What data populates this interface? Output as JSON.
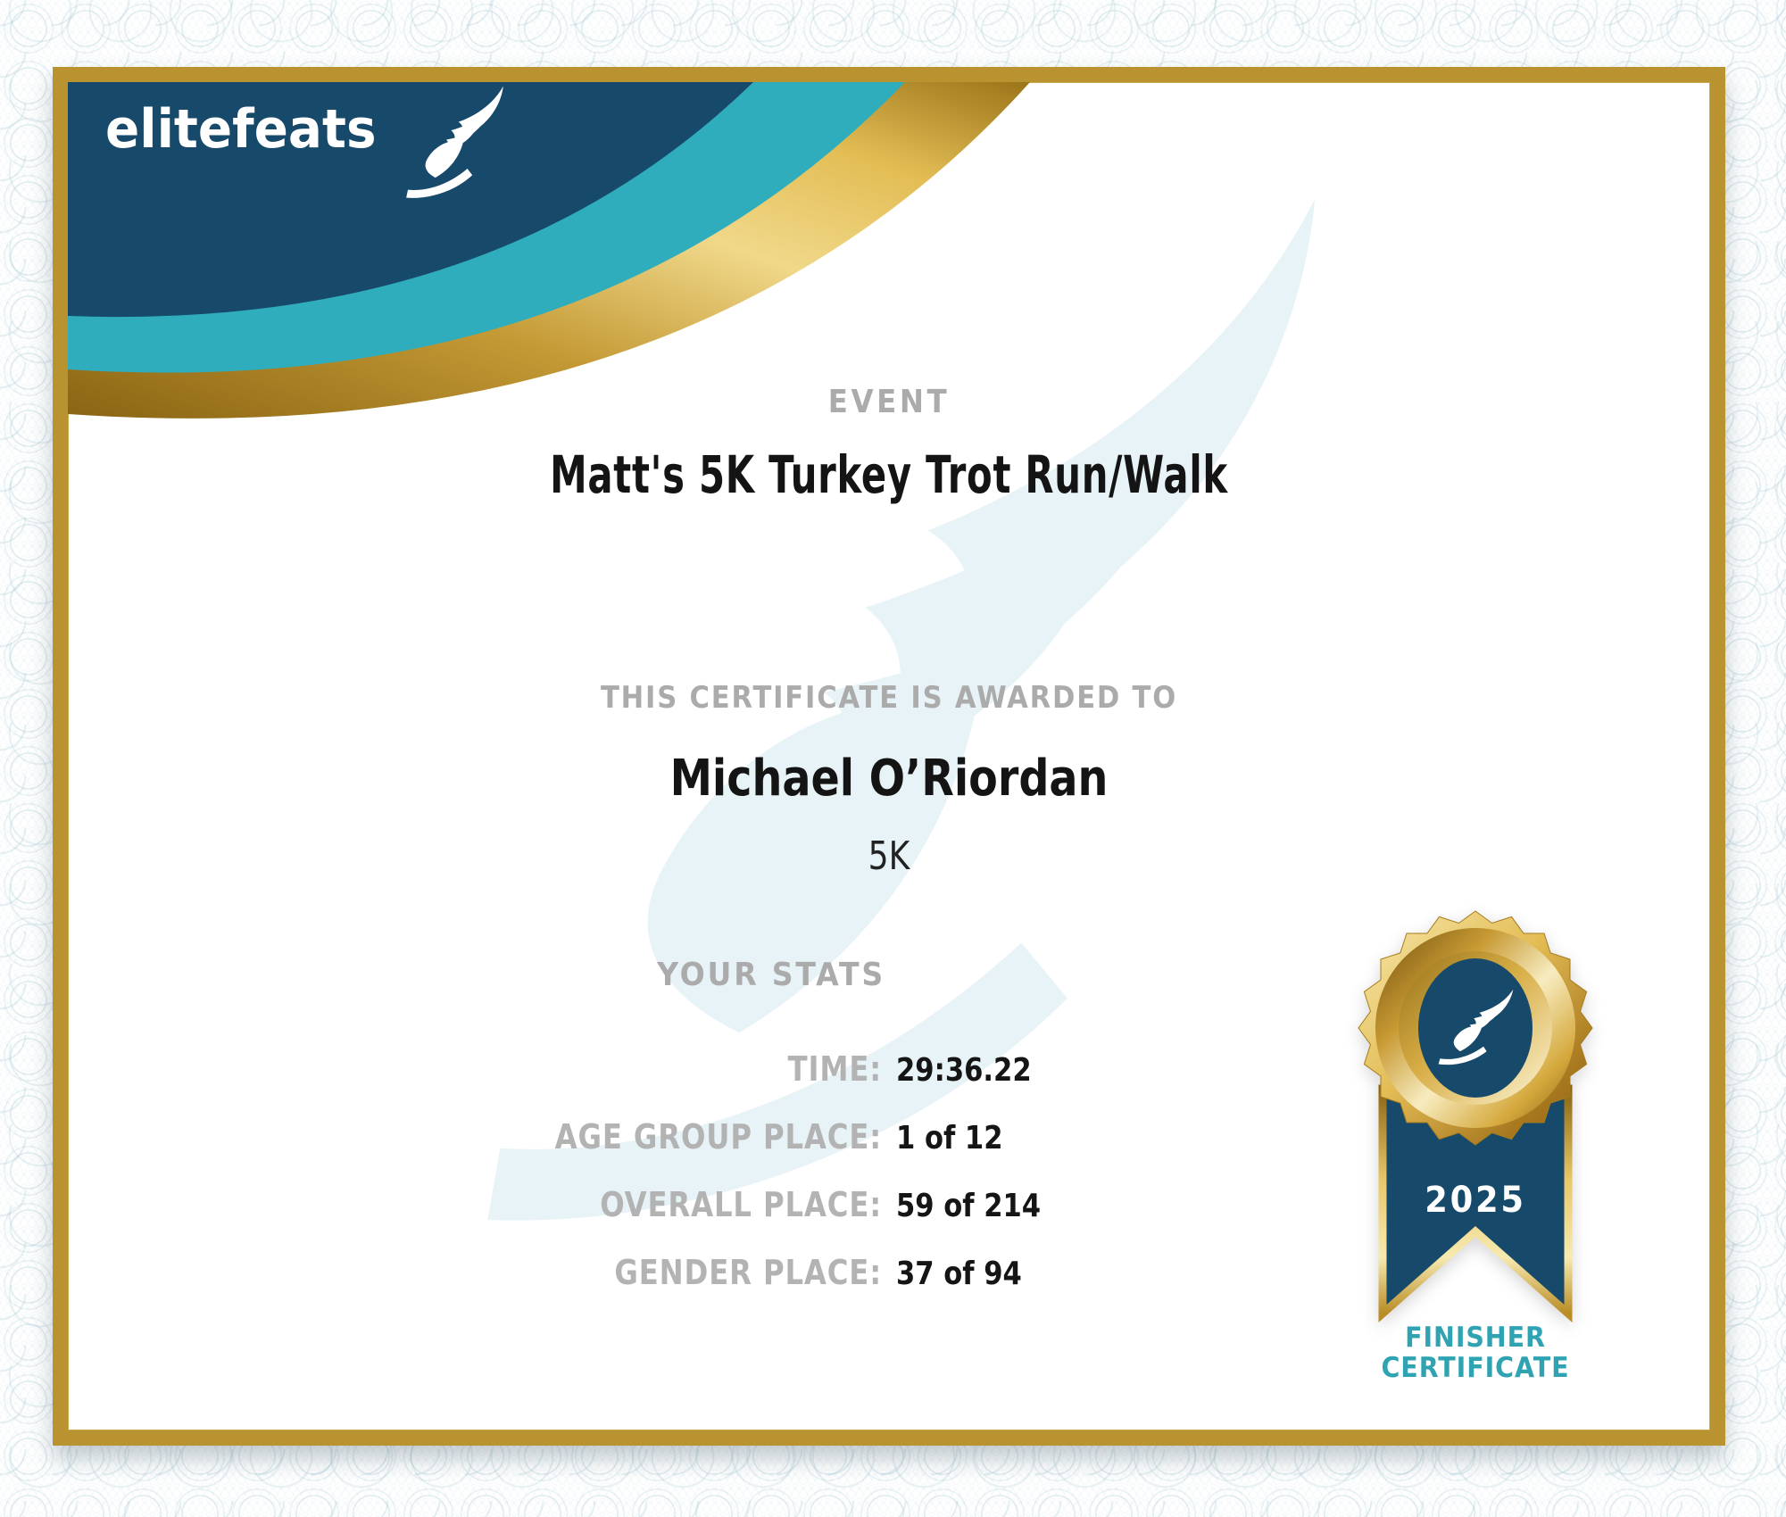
{
  "brand": {
    "logo_text": "elitefeats",
    "logo_icon": "winged-foot"
  },
  "certificate": {
    "event_label": "EVENT",
    "event_name": "Matt's 5K Turkey Trot Run/Walk",
    "awarded_label": "THIS CERTIFICATE IS AWARDED TO",
    "recipient_name": "Michael O’Riordan",
    "distance": "5K",
    "stats_heading": "YOUR STATS",
    "stats": [
      {
        "label": "TIME:",
        "value": "29:36.22"
      },
      {
        "label": "AGE GROUP PLACE:",
        "value": "1 of 12"
      },
      {
        "label": "OVERALL PLACE:",
        "value": "59 of 214"
      },
      {
        "label": "GENDER PLACE:",
        "value": "37 of 94"
      }
    ]
  },
  "badge": {
    "year": "2025",
    "finisher_line1": "FINISHER",
    "finisher_line2": "CERTIFICATE"
  },
  "colors": {
    "navy": "#17496b",
    "teal": "#2fadbc",
    "gold_frame": "#b8932f",
    "accent_teal_text": "#2fa3b2",
    "gray_label": "#ababab",
    "watermark": "#e7f3f7"
  }
}
